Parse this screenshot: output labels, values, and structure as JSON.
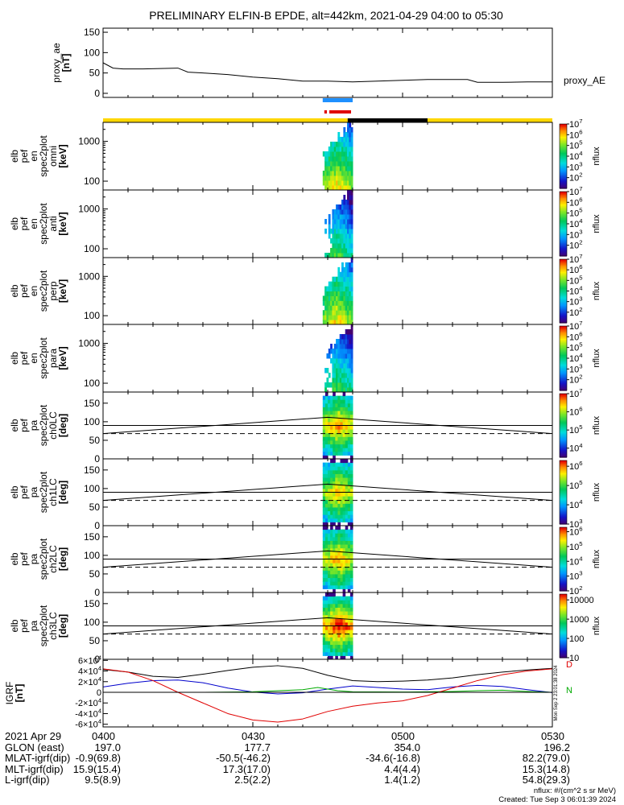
{
  "title": "PRELIMINARY ELFIN-B EPDE, alt=442km, 2021-04-29 04:00 to 05:30",
  "colors": {
    "yellow_bar": "#ffd700",
    "black_bar": "#000000",
    "blue_marker": "#1e90ff",
    "red_marker": "#e00000",
    "bx": "#000000",
    "by": "#0000cc",
    "bz": "#00aa00",
    "btot": "#e00000"
  },
  "chart_data": [
    {
      "type": "line",
      "id": "proxy_ae",
      "ylabel_lines": [
        "proxy_ae",
        "[nT]"
      ],
      "yticks": [
        "0",
        "50",
        "100",
        "150"
      ],
      "ylim": [
        -10,
        160
      ],
      "series": [
        {
          "name": "proxy_AE",
          "x": [
            "04:00",
            "04:02",
            "04:04",
            "04:08",
            "04:15",
            "04:17",
            "04:20",
            "04:25",
            "04:30",
            "04:35",
            "04:40",
            "04:45",
            "04:50",
            "04:55",
            "05:00",
            "05:05",
            "05:10",
            "05:13",
            "05:15",
            "05:20",
            "05:25",
            "05:30"
          ],
          "values": [
            75,
            62,
            60,
            60,
            62,
            52,
            50,
            46,
            40,
            36,
            30,
            30,
            28,
            30,
            32,
            34,
            34,
            34,
            27,
            27,
            28,
            28
          ]
        }
      ]
    },
    {
      "type": "heatmap",
      "id": "spec-omni",
      "ylabel_lines": [
        "elb",
        "pef",
        "en",
        "spec2plot",
        "omni",
        "[keV]"
      ],
      "yticks": [
        "100",
        "1000"
      ],
      "ylim_log": [
        60,
        3000
      ],
      "colorbar_ticks": [
        "10^2",
        "10^3",
        "10^4",
        "10^5",
        "10^6",
        "10^7"
      ],
      "colorbar_label": "nflux",
      "color_scale": [
        1,
        7
      ]
    },
    {
      "type": "heatmap",
      "id": "spec-anti",
      "ylabel_lines": [
        "elb",
        "pef",
        "en",
        "spec2plot",
        "anti",
        "[keV]"
      ],
      "yticks": [
        "100",
        "1000"
      ],
      "ylim_log": [
        60,
        3000
      ],
      "colorbar_ticks": [
        "10^2",
        "10^3",
        "10^4",
        "10^5",
        "10^6",
        "10^7"
      ],
      "colorbar_label": "nflux",
      "color_scale": [
        1,
        7
      ]
    },
    {
      "type": "heatmap",
      "id": "spec-perp",
      "ylabel_lines": [
        "elb",
        "pef",
        "en",
        "spec2plot",
        "perp",
        "[keV]"
      ],
      "yticks": [
        "100",
        "1000"
      ],
      "ylim_log": [
        60,
        3000
      ],
      "colorbar_ticks": [
        "10^2",
        "10^3",
        "10^4",
        "10^5",
        "10^6",
        "10^7"
      ],
      "colorbar_label": "nflux",
      "color_scale": [
        1,
        7
      ]
    },
    {
      "type": "heatmap",
      "id": "spec-para",
      "ylabel_lines": [
        "elb",
        "pef",
        "en",
        "spec2plot",
        "para",
        "[keV]"
      ],
      "yticks": [
        "100",
        "1000"
      ],
      "ylim_log": [
        60,
        3000
      ],
      "colorbar_ticks": [
        "10^2",
        "10^3",
        "10^4",
        "10^5",
        "10^6",
        "10^7"
      ],
      "colorbar_label": "nflux",
      "color_scale": [
        1,
        7
      ]
    },
    {
      "type": "heatmap",
      "id": "pa-ch0",
      "ylabel_lines": [
        "elb",
        "pef",
        "pa",
        "spec2plot",
        "ch0LC",
        "[deg]"
      ],
      "yticks": [
        "0",
        "50",
        "100",
        "150"
      ],
      "ylim": [
        0,
        180
      ],
      "colorbar_ticks": [
        "10^4",
        "10^5",
        "10^6",
        "10^7"
      ],
      "colorbar_label": "nflux",
      "color_scale": [
        3.5,
        7
      ]
    },
    {
      "type": "heatmap",
      "id": "pa-ch1",
      "ylabel_lines": [
        "elb",
        "pef",
        "pa",
        "spec2plot",
        "ch1LC",
        "[deg]"
      ],
      "yticks": [
        "0",
        "50",
        "100",
        "150"
      ],
      "ylim": [
        0,
        180
      ],
      "colorbar_ticks": [
        "10^3",
        "10^4",
        "10^5",
        "10^6"
      ],
      "colorbar_label": "nflux",
      "color_scale": [
        3,
        6.3
      ]
    },
    {
      "type": "heatmap",
      "id": "pa-ch2",
      "ylabel_lines": [
        "elb",
        "pef",
        "pa",
        "spec2plot",
        "ch2LC",
        "[deg]"
      ],
      "yticks": [
        "0",
        "50",
        "100",
        "150"
      ],
      "ylim": [
        0,
        180
      ],
      "colorbar_ticks": [
        "10^2",
        "10^3",
        "10^4",
        "10^5",
        "10^6"
      ],
      "colorbar_label": "nflux",
      "color_scale": [
        2,
        6.3
      ]
    },
    {
      "type": "heatmap",
      "id": "pa-ch3",
      "ylabel_lines": [
        "elb",
        "pef",
        "pa",
        "spec2plot",
        "ch3LC",
        "[deg]"
      ],
      "yticks": [
        "0",
        "50",
        "100",
        "150"
      ],
      "ylim": [
        0,
        180
      ],
      "colorbar_ticks": [
        "10",
        "100",
        "1000",
        "10000"
      ],
      "colorbar_label": "nflux",
      "color_scale": [
        1,
        4.3
      ]
    },
    {
      "type": "line",
      "id": "igrf",
      "ylabel_lines": [
        "IGRF",
        "[nT]"
      ],
      "yticks": [
        "-6×10^4",
        "-4×10^4",
        "-2×10^4",
        "0",
        "2×10^4",
        "4×10^4",
        "6×10^4"
      ],
      "ylim": [
        -65000,
        62000
      ],
      "series": [
        {
          "name": "black",
          "x": [
            "04:00",
            "04:05",
            "04:10",
            "04:15",
            "04:20",
            "04:25",
            "04:30",
            "04:35",
            "04:40",
            "04:45",
            "04:50",
            "04:55",
            "05:00",
            "05:05",
            "05:10",
            "05:15",
            "05:20",
            "05:25",
            "05:30"
          ],
          "values": [
            43000,
            38000,
            30000,
            28000,
            34000,
            41000,
            47000,
            50000,
            45000,
            32000,
            22000,
            20000,
            21000,
            23000,
            27000,
            33000,
            38000,
            42000,
            45000
          ]
        },
        {
          "name": "blue",
          "x": [
            "04:00",
            "04:05",
            "04:10",
            "04:15",
            "04:20",
            "04:25",
            "04:30",
            "04:35",
            "04:40",
            "04:45",
            "04:50",
            "04:55",
            "05:00",
            "05:05",
            "05:10",
            "05:15",
            "05:20",
            "05:25",
            "05:30"
          ],
          "values": [
            10000,
            17000,
            22000,
            23000,
            18000,
            8000,
            500,
            -3000,
            -1000,
            6000,
            12000,
            9000,
            6000,
            5000,
            10000,
            13000,
            11000,
            5000,
            -500
          ]
        },
        {
          "name": "green",
          "x": [
            "04:00",
            "04:10",
            "04:20",
            "04:30",
            "04:40",
            "04:43",
            "04:47",
            "04:50",
            "05:00",
            "05:10",
            "05:15",
            "05:20",
            "05:25",
            "05:30"
          ],
          "values": [
            0,
            0,
            0,
            1000,
            5000,
            9000,
            3000,
            1000,
            500,
            1500,
            3000,
            4000,
            1500,
            0
          ]
        },
        {
          "name": "red",
          "x": [
            "04:00",
            "04:05",
            "04:10",
            "04:15",
            "04:20",
            "04:25",
            "04:30",
            "04:35",
            "04:40",
            "04:45",
            "04:50",
            "04:55",
            "05:00",
            "05:05",
            "05:10",
            "05:15",
            "05:20",
            "05:25",
            "05:30"
          ],
          "values": [
            44000,
            38000,
            22000,
            0,
            -20000,
            -40000,
            -52000,
            -56000,
            -50000,
            -36000,
            -26000,
            -20000,
            -16000,
            -6000,
            8000,
            22000,
            33000,
            40000,
            44000
          ]
        }
      ],
      "legend": [
        "D",
        "N"
      ],
      "side_note": "Mon Sep  2 23:01:38 2024"
    }
  ],
  "x_axis": {
    "ticks": [
      "0400",
      "0430",
      "0500",
      "0530"
    ],
    "rows": [
      {
        "label": "2021 Apr 29",
        "values": [
          "",
          "",
          "",
          ""
        ]
      },
      {
        "label": "GLON (east)",
        "values": [
          "197.0",
          "177.7",
          "354.0",
          "196.2"
        ]
      },
      {
        "label": "MLAT-igrf(dip)",
        "values": [
          "-0.9(69.8)",
          "-50.5(-46.2)",
          "-34.6(-16.8)",
          "82.2(79.0)"
        ]
      },
      {
        "label": "MLT-igrf(dip)",
        "values": [
          "15.9(15.4)",
          "17.3(17.0)",
          "4.4(4.4)",
          "15.3(14.8)"
        ]
      },
      {
        "label": "L-igrf(dip)",
        "values": [
          "9.5(8.9)",
          "2.5(2.2)",
          "1.4(1.2)",
          "54.8(29.3)"
        ]
      }
    ]
  },
  "footer": {
    "units": "nflux: #/(cm^2 s sr MeV)",
    "created": "Created: Tue Sep  3 06:01:39 2024"
  }
}
